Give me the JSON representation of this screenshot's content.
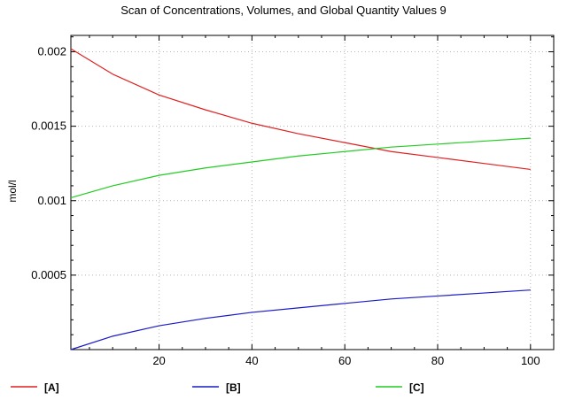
{
  "chart_data": {
    "type": "line",
    "title": "Scan of Concentrations, Volumes, and Global Quantity Values 9",
    "xlabel": "",
    "ylabel": "mol/l",
    "xlim": [
      1,
      105
    ],
    "ylim": [
      0,
      0.00211
    ],
    "x_ticks": [
      20,
      40,
      60,
      80,
      100
    ],
    "y_ticks": [
      0.0005,
      0.001,
      0.0015,
      0.002
    ],
    "y_tick_labels": [
      "0.0005",
      "0.001",
      "0.0015",
      "0.002"
    ],
    "grid": true,
    "legend_position": "bottom",
    "x": [
      1,
      10,
      20,
      30,
      40,
      50,
      60,
      70,
      80,
      90,
      100
    ],
    "series": [
      {
        "name": "[A]",
        "color": "#e02020",
        "values": [
          0.00202,
          0.00185,
          0.00171,
          0.00161,
          0.00152,
          0.00145,
          0.00139,
          0.00133,
          0.00129,
          0.00125,
          0.00121
        ]
      },
      {
        "name": "[B]",
        "color": "#1a1ac8",
        "values": [
          0.0,
          9e-05,
          0.00016,
          0.00021,
          0.00025,
          0.00028,
          0.00031,
          0.00034,
          0.00036,
          0.00038,
          0.0004
        ]
      },
      {
        "name": "[C]",
        "color": "#22cc22",
        "values": [
          0.00102,
          0.0011,
          0.00117,
          0.00122,
          0.00126,
          0.0013,
          0.00133,
          0.00136,
          0.00138,
          0.0014,
          0.00142
        ]
      }
    ]
  }
}
